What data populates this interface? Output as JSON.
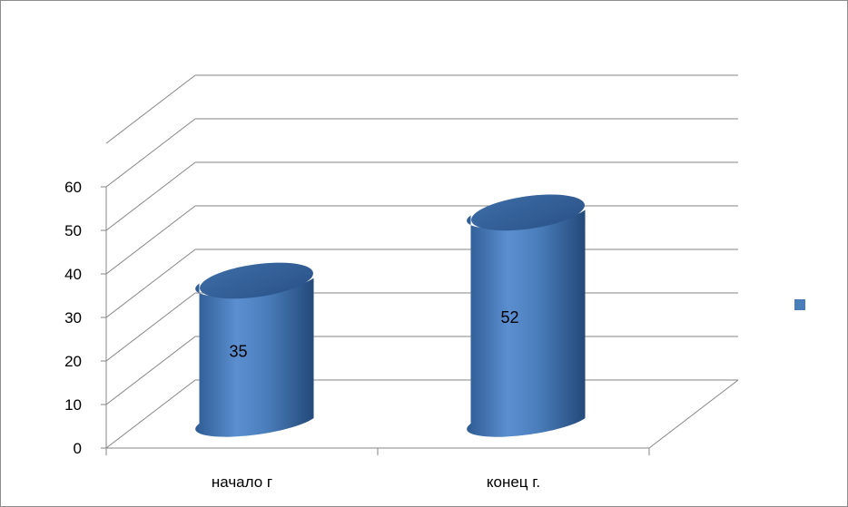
{
  "chart_data": {
    "type": "bar",
    "style": "3d-cylinder",
    "categories": [
      "начало г",
      "конец г."
    ],
    "series": [
      {
        "values": [
          35,
          52
        ],
        "color": "#4a7ebb"
      }
    ],
    "data_labels": [
      "35",
      "52"
    ],
    "yticks": [
      "0",
      "10",
      "20",
      "30",
      "40",
      "50",
      "60"
    ],
    "ylim": [
      0,
      70
    ],
    "grid": true,
    "legend": {
      "position": "right",
      "swatch_color": "#4a7ebb"
    },
    "colors": {
      "bar": "#4a7ebb",
      "bar_dark": "#2f5d96",
      "grid": "#868686"
    }
  }
}
